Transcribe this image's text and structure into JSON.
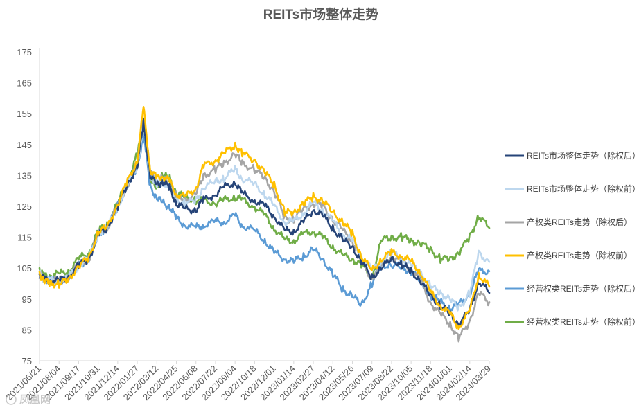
{
  "chart_data": {
    "type": "line",
    "title": "REITs市场整体走势",
    "xlabel": "",
    "ylabel": "",
    "ylim": [
      75,
      175
    ],
    "y_ticks": [
      75,
      85,
      95,
      105,
      115,
      125,
      135,
      145,
      155,
      165,
      175
    ],
    "grid": false,
    "legend_position": "right",
    "x_tick_labels": [
      "2021/06/21",
      "2021/08/04",
      "2021/09/17",
      "2021/10/31",
      "2021/12/14",
      "2022/01/27",
      "2022/03/12",
      "2022/04/25",
      "2022/06/08",
      "2022/07/22",
      "2022/09/04",
      "2022/10/18",
      "2022/12/01",
      "2023/01/14",
      "2023/02/27",
      "2023/04/12",
      "2023/05/26",
      "2023/07/09",
      "2023/08/22",
      "2023/10/05",
      "2023/11/18",
      "2024/01/01",
      "2024/02/14",
      "2024/03/29"
    ],
    "x_dates": [
      "2021/06/21",
      "2021/07/01",
      "2021/07/15",
      "2021/08/04",
      "2021/08/25",
      "2021/09/17",
      "2021/10/10",
      "2021/10/31",
      "2021/11/20",
      "2021/12/14",
      "2022/01/05",
      "2022/01/27",
      "2022/02/10",
      "2022/02/25",
      "2022/03/12",
      "2022/03/25",
      "2022/04/10",
      "2022/04/25",
      "2022/05/15",
      "2022/06/08",
      "2022/06/25",
      "2022/07/22",
      "2022/08/10",
      "2022/09/04",
      "2022/09/20",
      "2022/10/18",
      "2022/11/10",
      "2022/12/01",
      "2022/12/25",
      "2023/01/14",
      "2023/02/05",
      "2023/02/27",
      "2023/03/20",
      "2023/04/12",
      "2023/05/05",
      "2023/05/26",
      "2023/06/15",
      "2023/07/09",
      "2023/07/30",
      "2023/08/22",
      "2023/09/15",
      "2023/10/05",
      "2023/10/25",
      "2023/11/18",
      "2023/12/10",
      "2024/01/01",
      "2024/01/20",
      "2024/02/14",
      "2024/03/05",
      "2024/03/29"
    ],
    "series": [
      {
        "name": "REITs市场整体走势（除权后）",
        "color": "#264478",
        "values": [
          103,
          101.5,
          101,
          101,
          102,
          106,
          108,
          116,
          118,
          125,
          132,
          138,
          152,
          135,
          132,
          133,
          131,
          126,
          124,
          124,
          127,
          129,
          131,
          133,
          129,
          127,
          125,
          122,
          117,
          117,
          120,
          124,
          122,
          118,
          114,
          112,
          107,
          102,
          105,
          108,
          106,
          104,
          101,
          96,
          93,
          90,
          87,
          91,
          101,
          97
        ]
      },
      {
        "name": "REITs市场整体走势（除权前）",
        "color": "#bdd7ee",
        "values": [
          103,
          101.5,
          101,
          101,
          102,
          106,
          108,
          116,
          118,
          125,
          132,
          138,
          151,
          135,
          132,
          133,
          131,
          127,
          126,
          127,
          131,
          133,
          134,
          137,
          134,
          132,
          129,
          125,
          120,
          120,
          123,
          126,
          124,
          120,
          116,
          114,
          109,
          104,
          107,
          110,
          108,
          106,
          104,
          99,
          97,
          95,
          92,
          97,
          110,
          107
        ]
      },
      {
        "name": "产权类REITs走势（除权后）",
        "color": "#a5a5a5",
        "values": [
          103,
          101.5,
          101,
          101,
          102,
          106,
          108,
          116,
          118,
          125,
          132,
          139,
          154,
          136,
          133,
          134,
          132,
          128,
          127,
          129,
          135,
          137,
          139,
          142,
          139,
          137,
          134,
          130,
          121,
          121,
          124,
          126,
          125,
          121,
          117,
          114,
          107,
          102,
          106,
          109,
          107,
          105,
          101,
          94,
          90,
          87,
          82,
          88,
          97,
          94
        ]
      },
      {
        "name": "产权类REITs走势（除权前）",
        "color": "#ffc000",
        "values": [
          103,
          101,
          100,
          100,
          101,
          106,
          108,
          117,
          118,
          126,
          133,
          140,
          157,
          137,
          134,
          135,
          133,
          129,
          128,
          131,
          138,
          140,
          142,
          145,
          142,
          140,
          136,
          132,
          123,
          123,
          126,
          128,
          127,
          123,
          120,
          116,
          109,
          104,
          108,
          110,
          109,
          107,
          104,
          97,
          93,
          90,
          86,
          91,
          103,
          99
        ]
      },
      {
        "name": "经营权类REITs走势（除权后）",
        "color": "#5b9bd5",
        "values": [
          103,
          101.5,
          101,
          101,
          102,
          106,
          108,
          116,
          118,
          125,
          132,
          137,
          149,
          131,
          128,
          126,
          125,
          121,
          119,
          118,
          119,
          120,
          120,
          122,
          119,
          117,
          114,
          110,
          108,
          107,
          109,
          111,
          108,
          103,
          98,
          96,
          93,
          100,
          106,
          106,
          105,
          104,
          101,
          96,
          94,
          92,
          93,
          97,
          104,
          104
        ]
      },
      {
        "name": "经营权类REITs走势（除权前）",
        "color": "#70ad47",
        "values": [
          105,
          102,
          103,
          103,
          104,
          108,
          110,
          117,
          119,
          126,
          133,
          142,
          152,
          133,
          131,
          135,
          134,
          129,
          128,
          127,
          127,
          126,
          127,
          128,
          127,
          125,
          122,
          118,
          114,
          114,
          116,
          117,
          115,
          112,
          109,
          108,
          106,
          102,
          114,
          115,
          115,
          114,
          113,
          111,
          108,
          108,
          110,
          115,
          122,
          118
        ]
      }
    ]
  },
  "watermark_text": "凤凰网"
}
